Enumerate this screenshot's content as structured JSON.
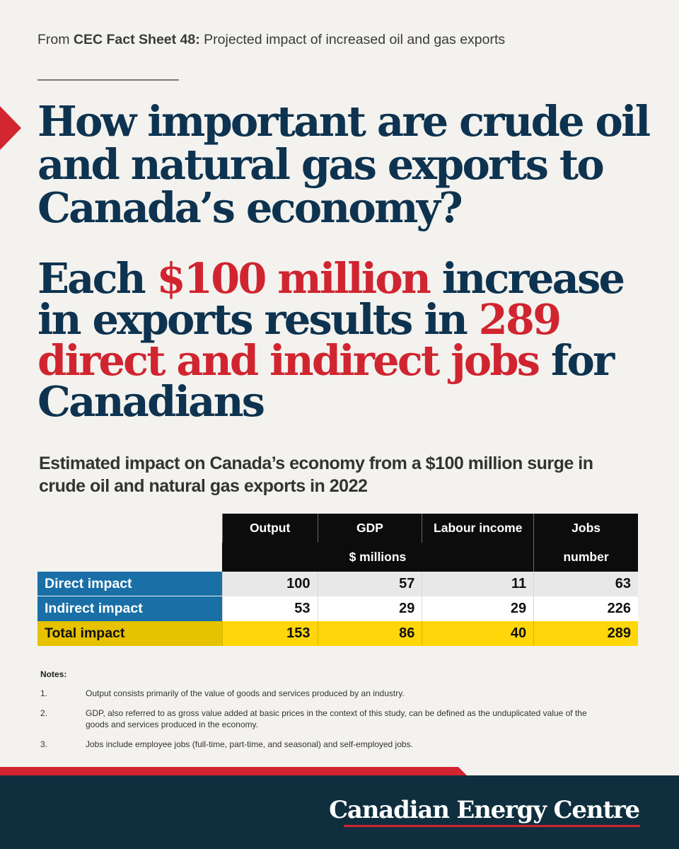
{
  "source": {
    "prefix": "From",
    "name": "CEC Fact Sheet 48:",
    "suffix": "Projected impact of increased oil and gas exports"
  },
  "headline": "How important are crude oil and natural gas exports to Canada’s economy?",
  "headline2": {
    "part1": "Each ",
    "highlight1": "$100 million",
    "part2": " increase in exports results in ",
    "highlight2": "289 direct and indirect jobs",
    "part3": " for Canadians"
  },
  "subtitle": "Estimated impact on Canada’s economy from a $100 million surge in crude oil and natural gas exports in 2022",
  "table": {
    "columns": [
      "Output",
      "GDP",
      "Labour income",
      "Jobs"
    ],
    "units": {
      "money": "$ millions",
      "count": "number"
    },
    "rows": [
      {
        "label": "Direct impact",
        "values": [
          "100",
          "57",
          "11",
          "63"
        ]
      },
      {
        "label": "Indirect impact",
        "values": [
          "53",
          "29",
          "29",
          "226"
        ]
      },
      {
        "label": "Total impact",
        "values": [
          "153",
          "86",
          "40",
          "289"
        ]
      }
    ]
  },
  "notes": {
    "title": "Notes:",
    "items": [
      {
        "num": "1.",
        "text": "Output consists primarily of the value of goods and services produced by an industry."
      },
      {
        "num": "2.",
        "text": "GDP, also referred to as gross value added at basic prices in the context of this study, can be defined as the unduplicated value of the goods and services produced in the economy."
      },
      {
        "num": "3.",
        "text": "Jobs include employee jobs (full-time, part-time, and seasonal) and self-employed jobs."
      }
    ]
  },
  "brand": "Canadian Energy Centre",
  "colors": {
    "navy": "#0e3350",
    "red": "#d02530",
    "blue": "#1a6fa6",
    "yellow": "#ffd60a",
    "footer": "#0f2f3e"
  }
}
